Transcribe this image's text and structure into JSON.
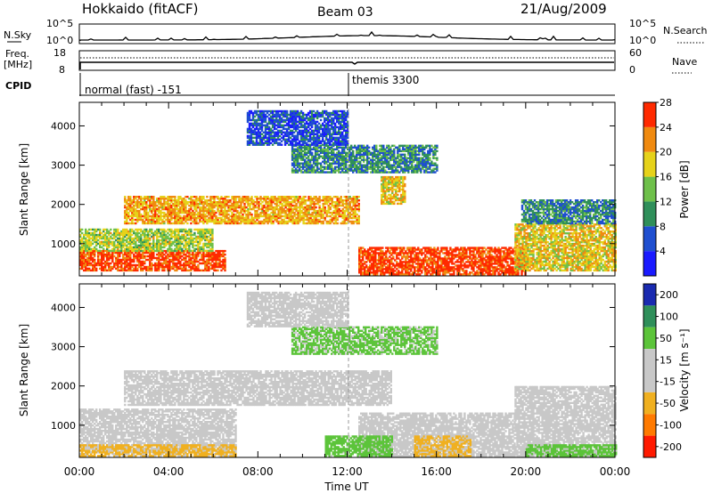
{
  "header": {
    "station": "Hokkaido (fitACF)",
    "beam": "Beam 03",
    "date": "21/Aug/2009"
  },
  "strip": {
    "nsky_label": "N.Sky",
    "nsky_tick_hi": "10^5",
    "nsky_tick_lo": "10^0",
    "nsky_tick_hi_r": "10^5",
    "nsky_tick_lo_r": "10^0",
    "nsearch_label": "N.Search",
    "freq_label": "Freq.",
    "freq_unit": "[MHz]",
    "freq_tick_hi": "18",
    "freq_tick_lo": "8",
    "nave_label": "Nave",
    "nave_tick_hi": "60",
    "nave_tick_lo": "0",
    "cpid_label": "CPID",
    "cpid_mode_1": "normal (fast) -151",
    "cpid_mode_2": "themis 3300"
  },
  "chart_data": [
    {
      "type": "heatmap",
      "panel": "power",
      "ylabel": "Slant Range [km]",
      "xlabel": "",
      "ylim": [
        180,
        4600
      ],
      "xlim": [
        "00:00",
        "24:00"
      ],
      "yticks": [
        "1000",
        "2000",
        "3000",
        "4000"
      ],
      "colorbar": {
        "label": "Power [dB]",
        "ticks": [
          "4",
          "8",
          "12",
          "16",
          "20",
          "24",
          "28"
        ],
        "colors": [
          "#1a1aff",
          "#1f4fd0",
          "#2f8f5a",
          "#6ec04a",
          "#e6d21a",
          "#f08a10",
          "#ff2a00"
        ],
        "range": [
          0,
          30
        ]
      },
      "echo_regions": [
        {
          "t0": 0.0,
          "t1": 6.5,
          "r0": 300,
          "r1": 800,
          "power": 27
        },
        {
          "t0": 0.0,
          "t1": 6.0,
          "r0": 800,
          "r1": 1350,
          "power": 17
        },
        {
          "t0": 2.0,
          "t1": 12.5,
          "r0": 1500,
          "r1": 2200,
          "power": 22
        },
        {
          "t0": 12.5,
          "t1": 20.0,
          "r0": 200,
          "r1": 900,
          "power": 28
        },
        {
          "t0": 19.5,
          "t1": 24.0,
          "r0": 300,
          "r1": 1500,
          "power": 20
        },
        {
          "t0": 19.8,
          "t1": 24.0,
          "r0": 1500,
          "r1": 2100,
          "power": 10
        },
        {
          "t0": 13.5,
          "t1": 14.6,
          "r0": 2000,
          "r1": 2700,
          "power": 20
        },
        {
          "t0": 9.5,
          "t1": 16.0,
          "r0": 2800,
          "r1": 3500,
          "power": 10
        },
        {
          "t0": 7.5,
          "t1": 12.0,
          "r0": 3500,
          "r1": 4400,
          "power": 6
        }
      ]
    },
    {
      "type": "heatmap",
      "panel": "velocity",
      "ylabel": "Slant Range [km]",
      "xlabel": "Time UT",
      "ylim": [
        180,
        4600
      ],
      "xlim": [
        "00:00",
        "24:00"
      ],
      "xticks": [
        "00:00",
        "04:00",
        "08:00",
        "12:00",
        "16:00",
        "20:00",
        "00:00"
      ],
      "yticks": [
        "1000",
        "2000",
        "3000",
        "4000"
      ],
      "colorbar": {
        "label": "Velocity [m s⁻¹]",
        "ticks": [
          "200",
          "100",
          "50",
          "15",
          "-15",
          "-50",
          "-100",
          "-200"
        ],
        "colors": [
          "#1a2ab0",
          "#2f8f5a",
          "#5cc43a",
          "#c8c8c8",
          "#c8c8c8",
          "#f0b020",
          "#ff7a00",
          "#ff1a00"
        ],
        "range": [
          -250,
          250
        ]
      },
      "echo_regions": [
        {
          "t0": 0.0,
          "t1": 7.0,
          "r0": 300,
          "r1": 1400,
          "velocity": 0
        },
        {
          "t0": 0.0,
          "t1": 7.0,
          "r0": 200,
          "r1": 500,
          "velocity": -40
        },
        {
          "t0": 2.0,
          "t1": 14.0,
          "r0": 1500,
          "r1": 2400,
          "velocity": 0
        },
        {
          "t0": 12.5,
          "t1": 19.5,
          "r0": 200,
          "r1": 1300,
          "velocity": 0
        },
        {
          "t0": 15.0,
          "t1": 17.5,
          "r0": 200,
          "r1": 700,
          "velocity": -40
        },
        {
          "t0": 11.0,
          "t1": 14.0,
          "r0": 200,
          "r1": 700,
          "velocity": 45
        },
        {
          "t0": 19.5,
          "t1": 24.0,
          "r0": 200,
          "r1": 2000,
          "velocity": 0
        },
        {
          "t0": 20.0,
          "t1": 24.0,
          "r0": 200,
          "r1": 500,
          "velocity": 45
        },
        {
          "t0": 9.5,
          "t1": 16.0,
          "r0": 2800,
          "r1": 3500,
          "velocity": 40
        },
        {
          "t0": 7.5,
          "t1": 12.0,
          "r0": 3500,
          "r1": 4400,
          "velocity": 0
        }
      ]
    }
  ]
}
